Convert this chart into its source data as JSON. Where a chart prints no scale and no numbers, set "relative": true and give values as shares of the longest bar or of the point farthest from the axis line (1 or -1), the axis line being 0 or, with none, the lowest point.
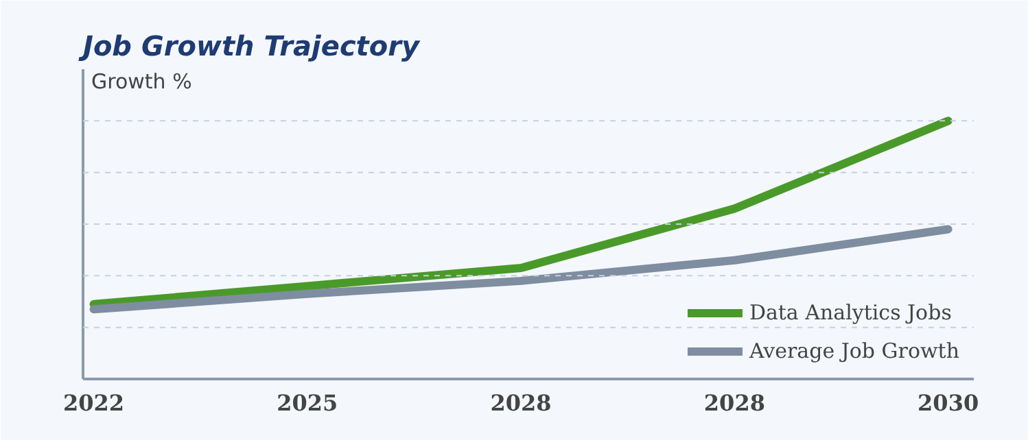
{
  "chart_data": {
    "type": "line",
    "title": "Job Growth Trajectory",
    "ylabel": "Growth %",
    "relative": true,
    "categories": [
      "2022",
      "2025",
      "2028",
      "2028",
      "2030"
    ],
    "series": [
      {
        "name": "Data Analytics Jobs",
        "color": "#4a9a2a",
        "values": [
          0.29,
          0.36,
          0.43,
          0.66,
          1.0
        ]
      },
      {
        "name": "Average Job Growth",
        "color": "#7f8da0",
        "values": [
          0.27,
          0.33,
          0.38,
          0.46,
          0.58
        ]
      }
    ],
    "grid": "y",
    "legend": "bottom right",
    "marker": "none",
    "line_style": "solid"
  }
}
